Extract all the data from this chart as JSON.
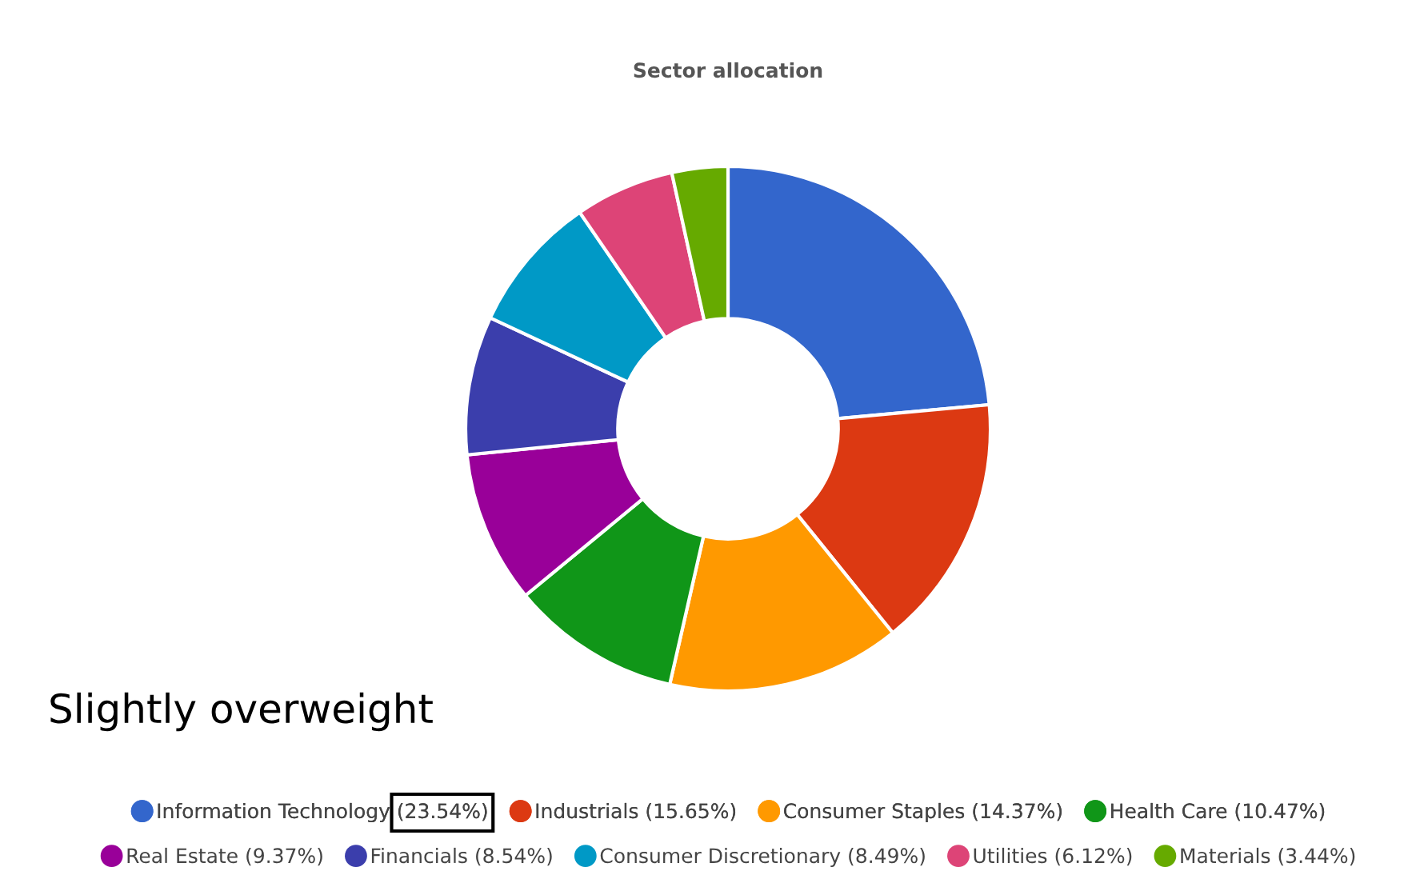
{
  "chart_data": {
    "type": "donut",
    "title": "Sector allocation",
    "categories": [
      "Information Technology (23.54%)",
      "Industrials (15.65%)",
      "Consumer Staples (14.37%)",
      "Health Care (10.47%)",
      "Real Estate (9.37%)",
      "Financials (8.54%)",
      "Consumer Discretionary (8.49%)",
      "Utilities (6.12%)",
      "Materials (3.44%)"
    ],
    "values": [
      23.54,
      15.65,
      14.37,
      10.47,
      9.37,
      8.54,
      8.49,
      6.12,
      3.44
    ],
    "colors": [
      "#3366cc",
      "#dc3912",
      "#ff9900",
      "#109618",
      "#990099",
      "#3b3eac",
      "#0099c6",
      "#dd4477",
      "#66aa00"
    ],
    "legend": "bottom",
    "annotations": [
      "Slightly overweight"
    ]
  }
}
